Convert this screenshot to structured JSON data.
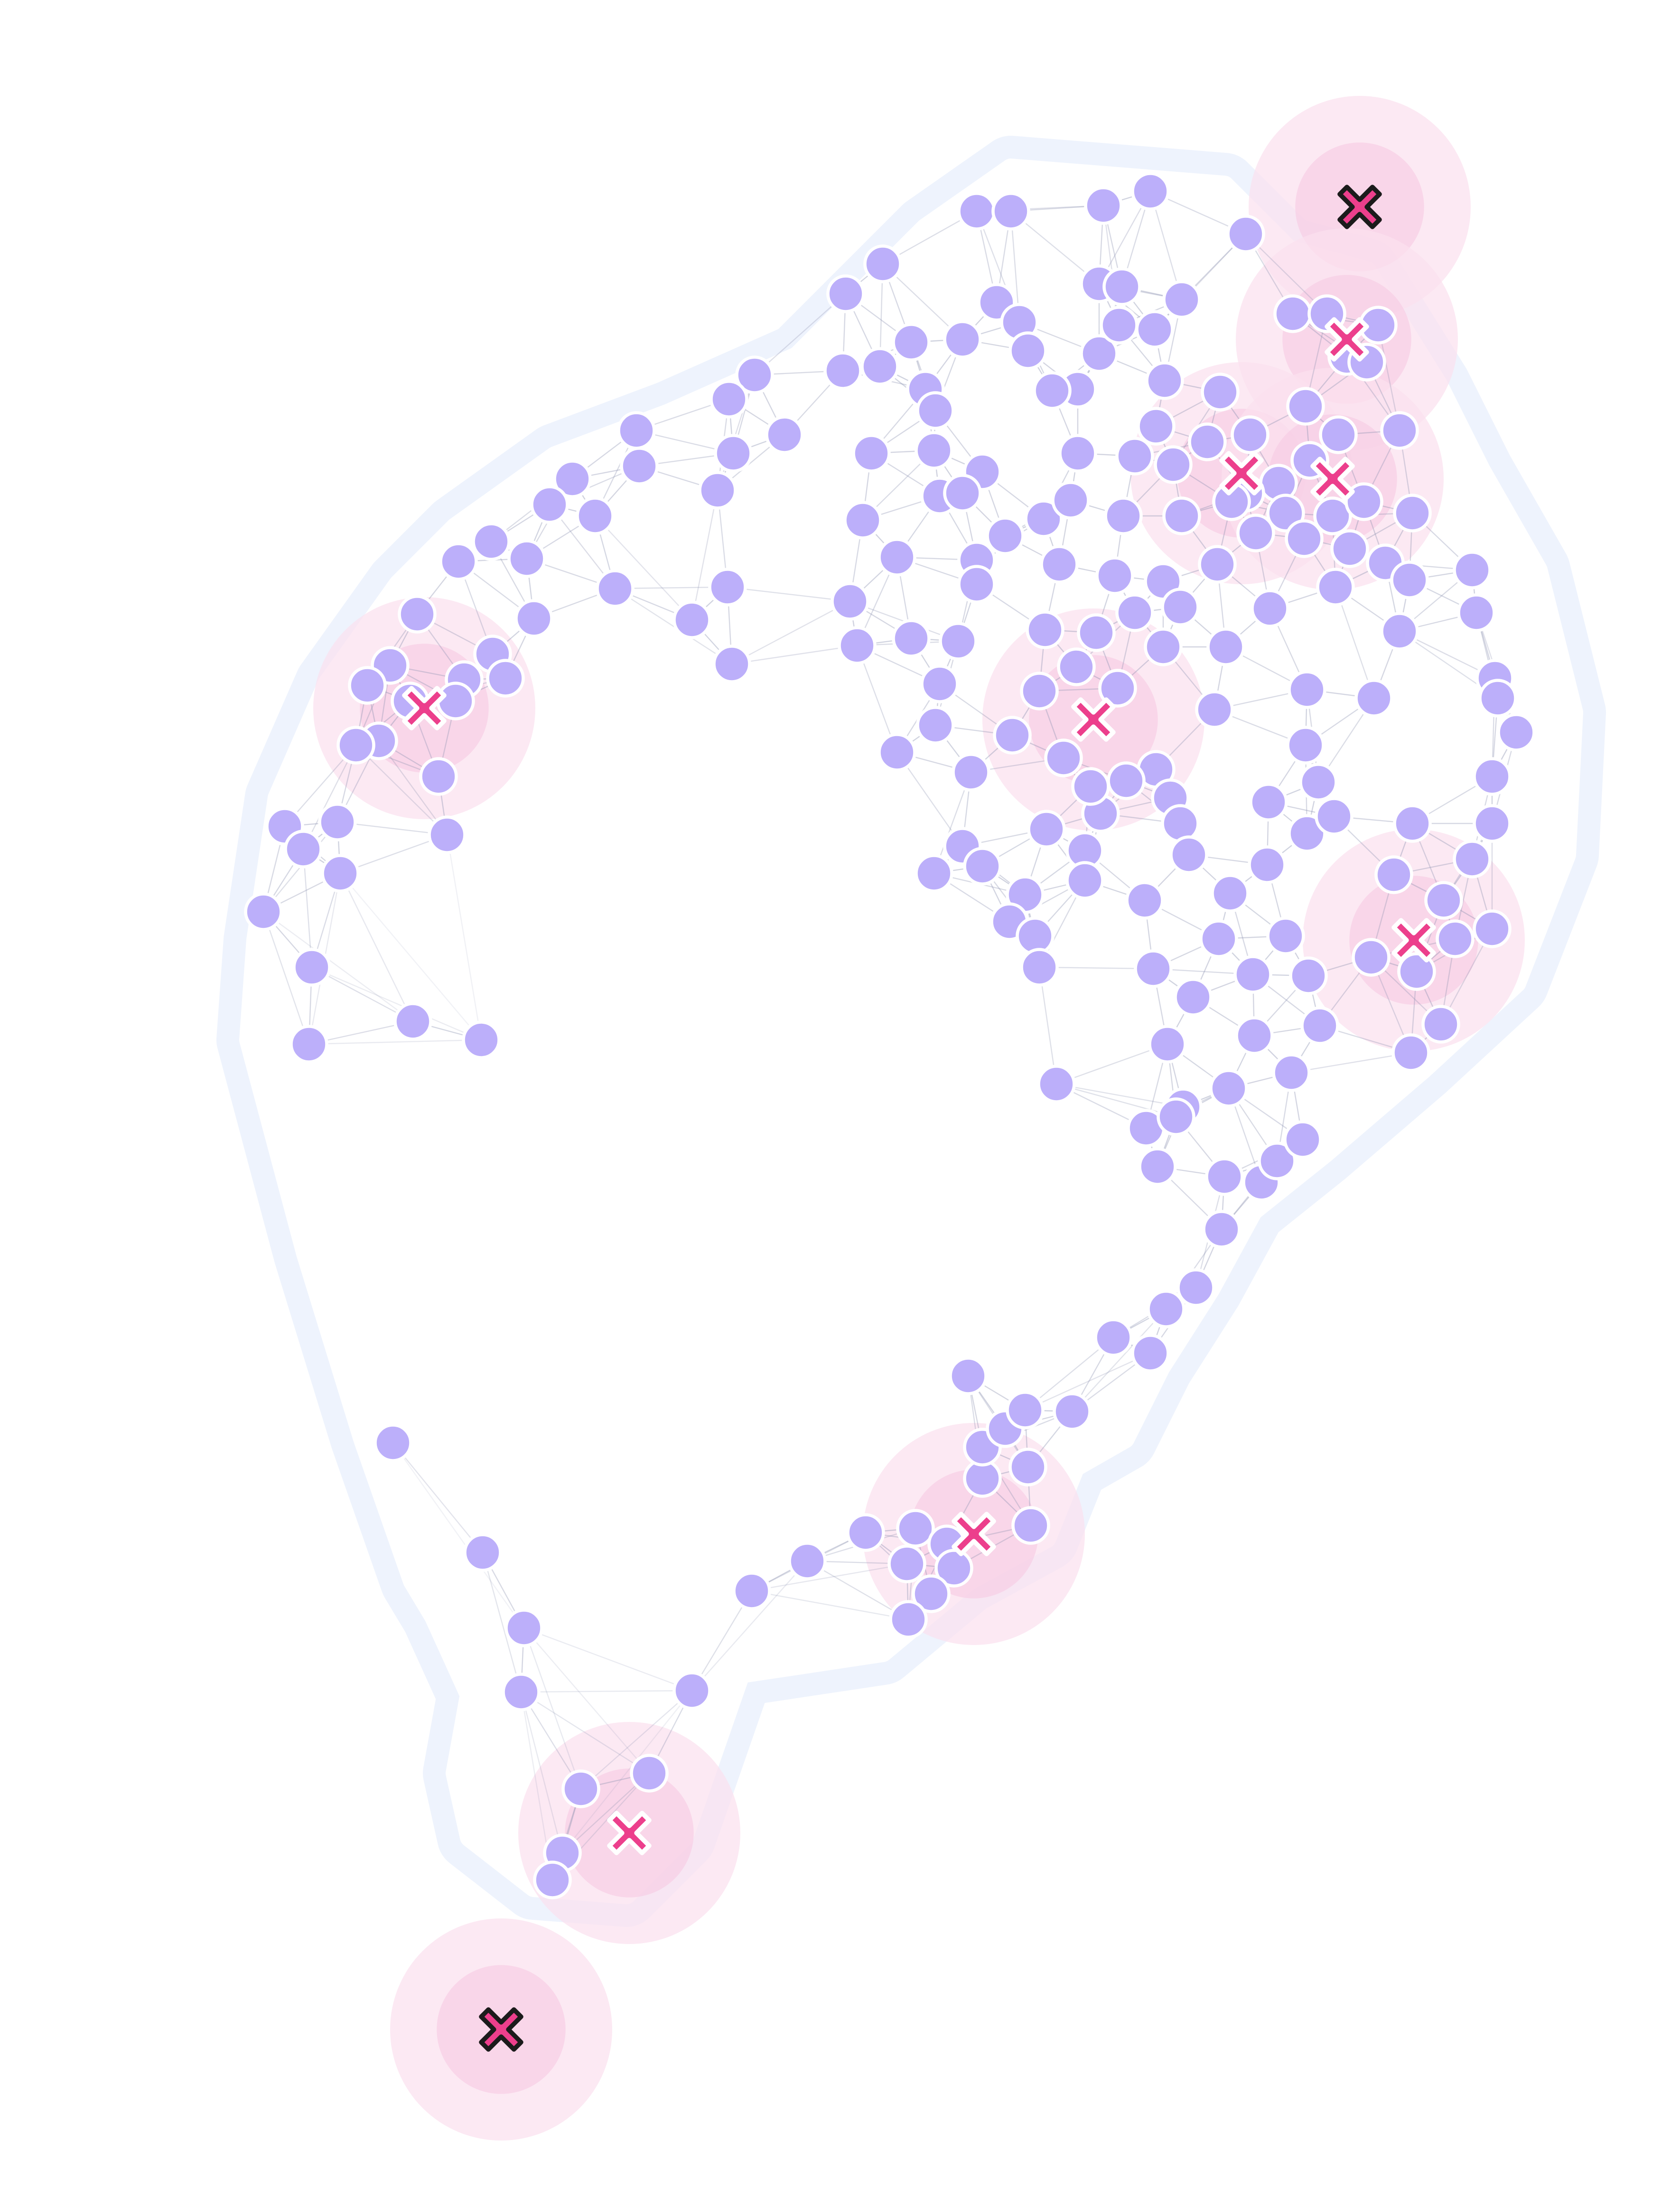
{
  "colors": {
    "background": "#ffffff",
    "hull_fill": "#eef3fd",
    "hull_outline": "#e7eefb",
    "edge": "#8e94b2",
    "node_fill": "#bcaffa",
    "node_stroke": "#ffffff",
    "halo_outer": "#fbe1ee",
    "halo_inner": "#f7c9e2",
    "marker_fill": "#ec3f8c",
    "marker_outline_inside": "#ffffff",
    "marker_outline_outside": "#1b1b1b"
  },
  "graph": {
    "node_count": 259,
    "markers": [
      {
        "name": "marker-outlier-top-right",
        "status": "outside"
      },
      {
        "name": "marker-cluster-top-right-a",
        "status": "inside"
      },
      {
        "name": "marker-cluster-top-right-b",
        "status": "inside"
      },
      {
        "name": "marker-cluster-top-right-c",
        "status": "inside"
      },
      {
        "name": "marker-cluster-left",
        "status": "inside"
      },
      {
        "name": "marker-cluster-center",
        "status": "inside"
      },
      {
        "name": "marker-cluster-right",
        "status": "inside"
      },
      {
        "name": "marker-cluster-lower-middle",
        "status": "inside"
      },
      {
        "name": "marker-cluster-bottom-left",
        "status": "inside"
      },
      {
        "name": "marker-outlier-bottom-left",
        "status": "outside"
      }
    ]
  }
}
